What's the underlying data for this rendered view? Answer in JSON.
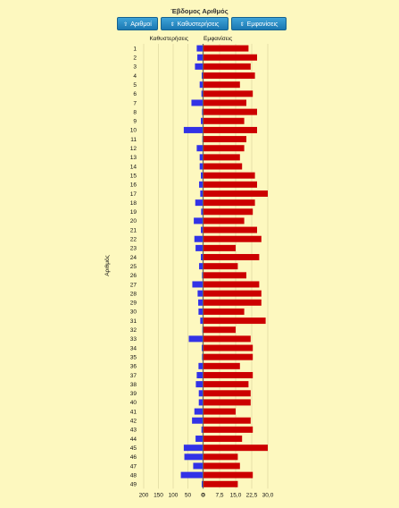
{
  "title": "Έβδομος Αριθμός",
  "buttons": [
    {
      "label": "Αριθμοί",
      "icon": "arrow-up-icon"
    },
    {
      "label": "Καθυστερήσεις",
      "icon": "sort-icon"
    },
    {
      "label": "Εμφανίσεις",
      "icon": "sort-icon"
    }
  ],
  "chart_data": {
    "type": "bar",
    "ylabel": "Αριθμός",
    "categories": [
      "1",
      "2",
      "3",
      "4",
      "5",
      "6",
      "7",
      "8",
      "9",
      "10",
      "11",
      "12",
      "13",
      "14",
      "15",
      "16",
      "17",
      "18",
      "19",
      "20",
      "21",
      "22",
      "23",
      "24",
      "25",
      "26",
      "27",
      "28",
      "29",
      "30",
      "31",
      "32",
      "33",
      "34",
      "35",
      "36",
      "37",
      "38",
      "39",
      "40",
      "41",
      "42",
      "43",
      "44",
      "45",
      "46",
      "47",
      "48",
      "49"
    ],
    "left_panel": {
      "label": "Καθυστερήσεις",
      "color": "#3232e6",
      "xlim": [
        0,
        200
      ],
      "ticks": [
        "200",
        "150",
        "100",
        "50",
        "0"
      ],
      "values": [
        20,
        18,
        26,
        3,
        10,
        4,
        38,
        2,
        6,
        64,
        1,
        20,
        10,
        10,
        6,
        12,
        8,
        25,
        5,
        30,
        6,
        28,
        24,
        6,
        12,
        2,
        35,
        17,
        15,
        14,
        8,
        1,
        47,
        3,
        2,
        14,
        20,
        23,
        13,
        13,
        28,
        36,
        4,
        24,
        64,
        62,
        32,
        74,
        3
      ]
    },
    "right_panel": {
      "label": "Εμφανίσεις",
      "color": "#cc0000",
      "xlim": [
        0,
        30
      ],
      "ticks": [
        "0",
        "7,5",
        "15,0",
        "22,5",
        "30,0"
      ],
      "values": [
        21,
        25,
        22,
        24,
        17,
        23,
        20,
        25,
        19,
        25,
        20,
        19,
        17,
        18,
        24,
        25,
        30,
        24,
        23,
        19,
        25,
        27,
        15,
        26,
        16,
        20,
        26,
        27,
        27,
        19,
        29,
        15,
        22,
        23,
        23,
        17,
        23,
        21,
        22,
        22,
        15,
        22,
        23,
        18,
        30,
        16,
        17,
        23,
        16
      ]
    }
  }
}
